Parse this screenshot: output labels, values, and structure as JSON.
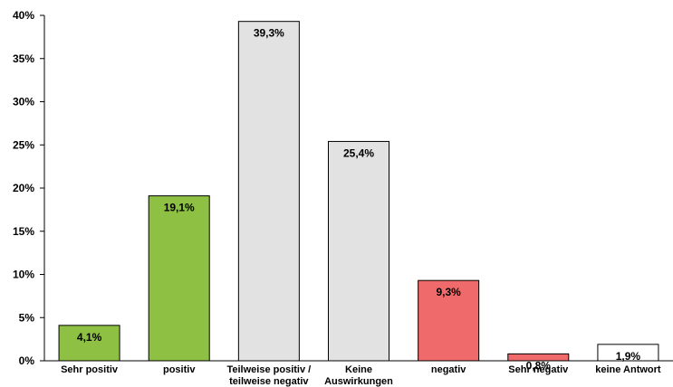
{
  "chart_data": {
    "type": "bar",
    "categories": [
      [
        "Sehr positiv"
      ],
      [
        "positiv"
      ],
      [
        "Teilweise positiv /",
        "teilweise negativ"
      ],
      [
        "Keine",
        "Auswirkungen"
      ],
      [
        "negativ"
      ],
      [
        "Sehr negativ"
      ],
      [
        "keine Antwort"
      ]
    ],
    "values": [
      4.1,
      19.1,
      39.3,
      25.4,
      9.3,
      0.8,
      1.9
    ],
    "data_labels": [
      "4,1%",
      "19,1%",
      "39,3%",
      "25,4%",
      "9,3%",
      "0,8%",
      "1,9%"
    ],
    "bar_colors": [
      "#8dc043",
      "#8dc043",
      "#e2e2e2",
      "#e2e2e2",
      "#ef6a6a",
      "#ef6a6a",
      "#ffffff"
    ],
    "y_ticks": [
      "0%",
      "5%",
      "10%",
      "15%",
      "20%",
      "25%",
      "30%",
      "35%",
      "40%"
    ],
    "ylim": [
      0,
      40
    ],
    "grid": false,
    "legend": "none"
  }
}
